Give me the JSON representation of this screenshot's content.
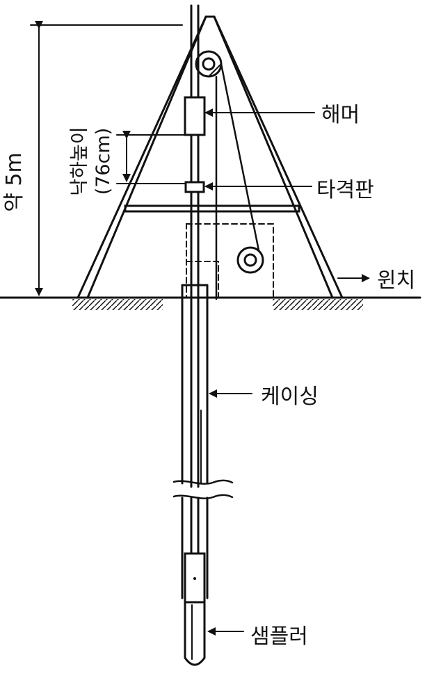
{
  "labels": {
    "hammer": "해머",
    "anvil": "타격판",
    "winch": "윈치",
    "casing": "케이싱",
    "sampler": "샘플러",
    "total_height": "약 5m",
    "drop_height": "낙하높이",
    "drop_height_value": "(76cm)"
  }
}
